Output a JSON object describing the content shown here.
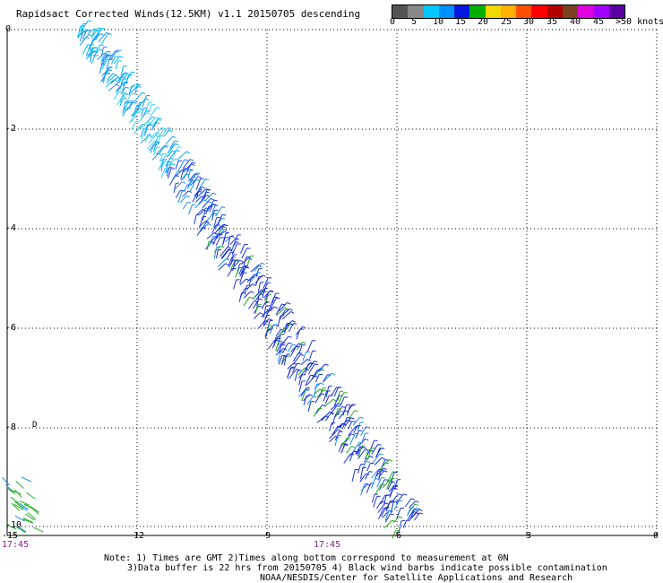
{
  "title": "Rapidsact Corrected Winds(12.5KM) v1.1 20150705 descending",
  "color_scale": {
    "colors": [
      "#545454",
      "#888888",
      "#00c8ff",
      "#0090ff",
      "#0018e0",
      "#00b000",
      "#f0d800",
      "#ffb000",
      "#ff5000",
      "#ff0000",
      "#b00000",
      "#7a4020",
      "#e000e0",
      "#a000ff",
      "#5a00a0"
    ],
    "labels": [
      "0",
      "5",
      "10",
      "15",
      "20",
      "25",
      "30",
      "35",
      "40",
      "45",
      ">50 knots"
    ]
  },
  "axes": {
    "x_ticks": [
      "-15",
      "-12",
      "-9",
      "-6",
      "-3",
      "0"
    ],
    "y_ticks": [
      "0",
      "-2",
      "-4",
      "-6",
      "-8",
      "-10"
    ]
  },
  "times": [
    "17:45",
    "17:45"
  ],
  "notes": [
    "Note: 1) Times are GMT 2)Times along bottom correspond to measurement at 0N",
    "3)Data buffer is 22 hrs from 20150705 4) Black wind barbs indicate possible contamination",
    "NOAA/NESDIS/Center for Satellite Applications and Research"
  ],
  "marker": "D"
}
